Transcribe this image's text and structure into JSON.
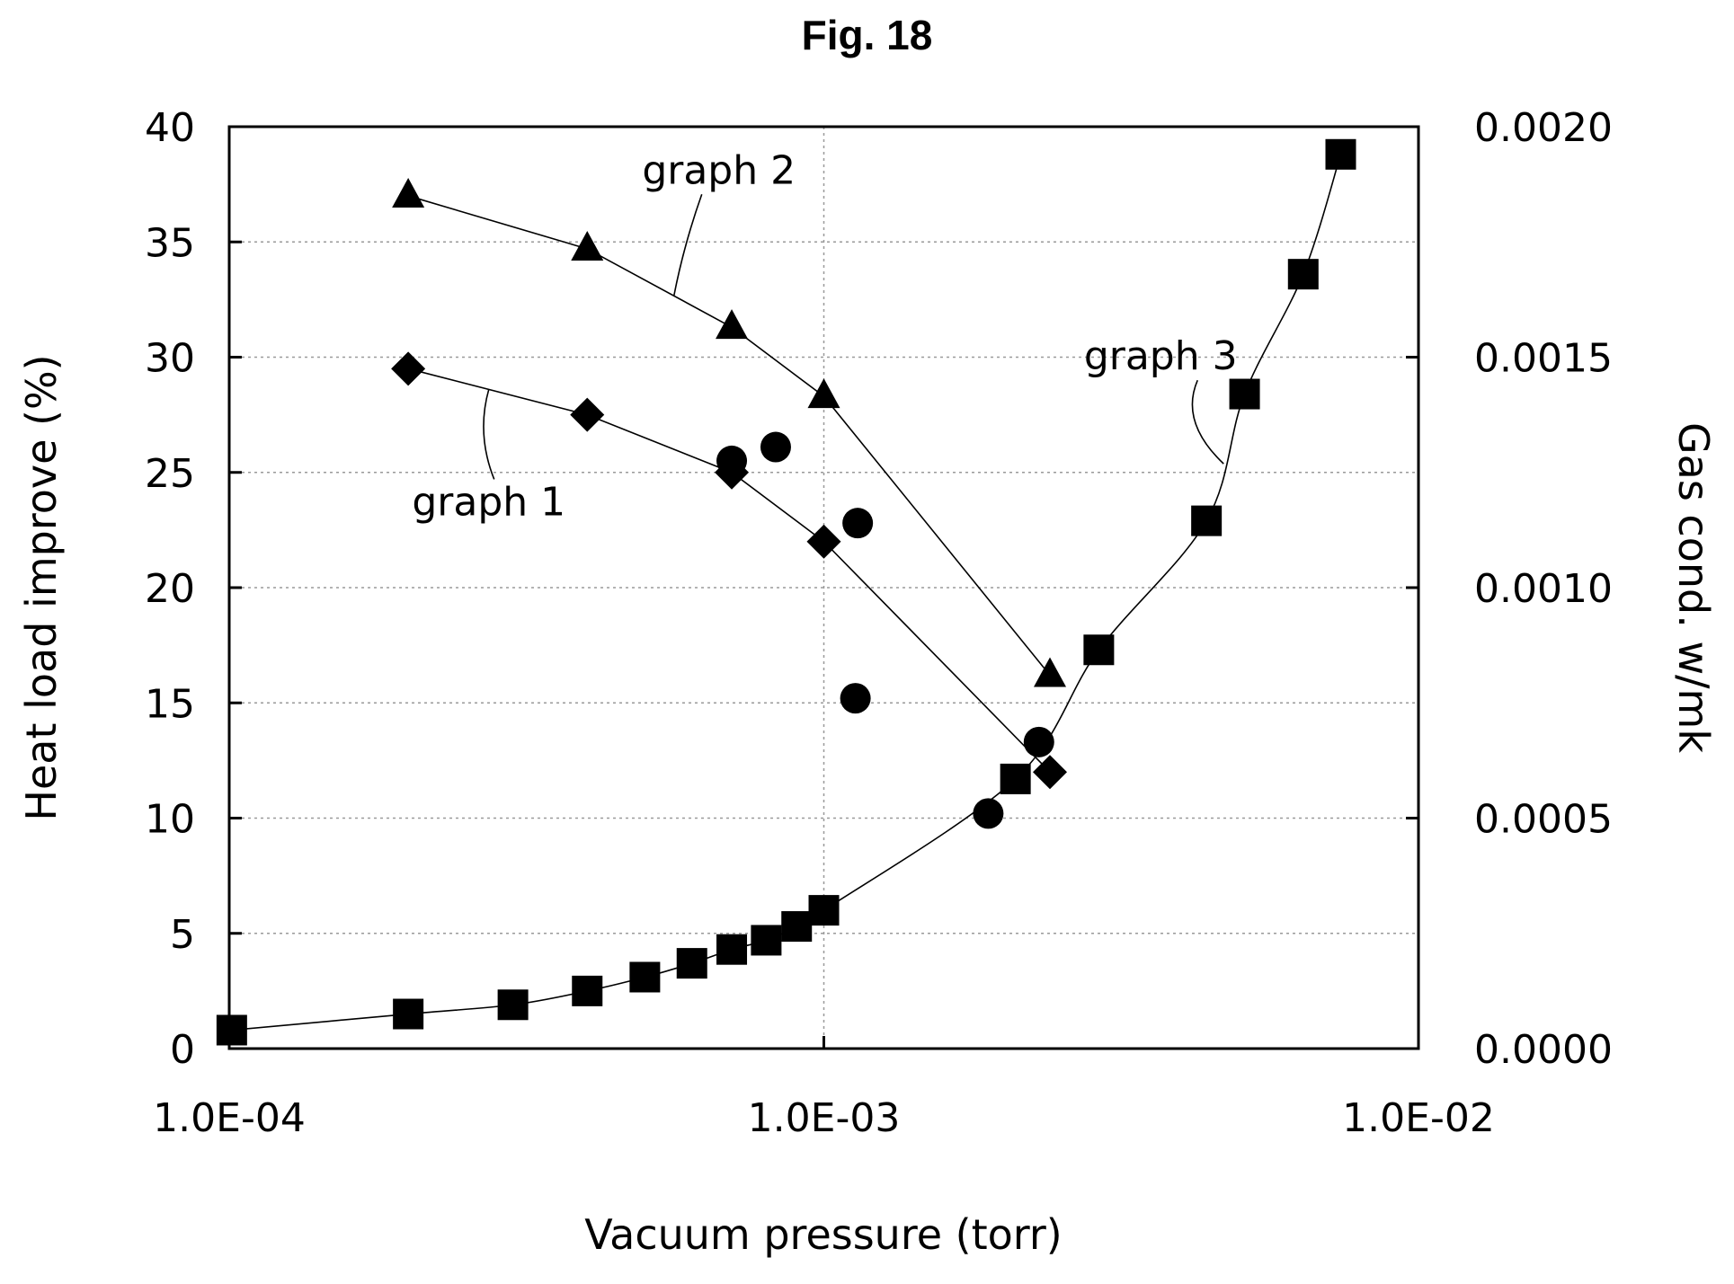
{
  "figure_title": "Fig. 18",
  "chart_data": {
    "type": "scatter",
    "title": "",
    "xlabel": "Vacuum pressure (torr)",
    "ylabel": "Heat load improve (%)",
    "y2label": "Gas cond. w/mk",
    "xscale": "log",
    "xlim": [
      0.0001,
      0.01
    ],
    "ylim": [
      0,
      40
    ],
    "y2lim": [
      0,
      0.002
    ],
    "grid": true,
    "x_tick_labels": [
      "1.0E-04",
      "1.0E-03",
      "1.0E-02"
    ],
    "y_tick_labels": [
      "0",
      "5",
      "10",
      "15",
      "20",
      "25",
      "30",
      "35",
      "40"
    ],
    "y2_tick_labels": [
      "0.0000",
      "0.0005",
      "0.0010",
      "0.0015",
      "0.0020"
    ],
    "series": [
      {
        "name": "graph 1",
        "marker": "diamond",
        "axis": "left",
        "x": [
          0.0002,
          0.0004,
          0.0007,
          0.001,
          0.0024
        ],
        "y": [
          29.5,
          27.5,
          25.0,
          22.0,
          12.0
        ]
      },
      {
        "name": "graph 2",
        "marker": "triangle",
        "axis": "left",
        "x": [
          0.0002,
          0.0004,
          0.0007,
          0.001,
          0.0024
        ],
        "y": [
          37.0,
          34.7,
          31.3,
          28.3,
          16.2
        ]
      },
      {
        "name": "graph 3",
        "marker": "square",
        "axis": "right",
        "x": [
          0.000101,
          0.0002,
          0.0003,
          0.0004,
          0.0005,
          0.0006,
          0.0007,
          0.0008,
          0.0009,
          0.001,
          0.0021,
          0.0029,
          0.0044,
          0.0051,
          0.0064,
          0.0074
        ],
        "y": [
          4e-05,
          7.5e-05,
          9.5e-05,
          0.000125,
          0.000155,
          0.000185,
          0.000215,
          0.000235,
          0.000265,
          0.0003,
          0.000585,
          0.000865,
          0.001145,
          0.00142,
          0.00168,
          0.00194
        ]
      },
      {
        "marker": "circle",
        "axis": "left",
        "x": [
          0.0007,
          0.00083,
          0.00114,
          0.00113,
          0.00189,
          0.0023
        ],
        "y": [
          25.5,
          26.1,
          22.8,
          15.2,
          10.2,
          13.3
        ]
      }
    ],
    "annotations": [
      {
        "text": "graph 1",
        "series": "graph 1"
      },
      {
        "text": "graph 2",
        "series": "graph 2"
      },
      {
        "text": "graph 3",
        "series": "graph 3"
      }
    ]
  }
}
